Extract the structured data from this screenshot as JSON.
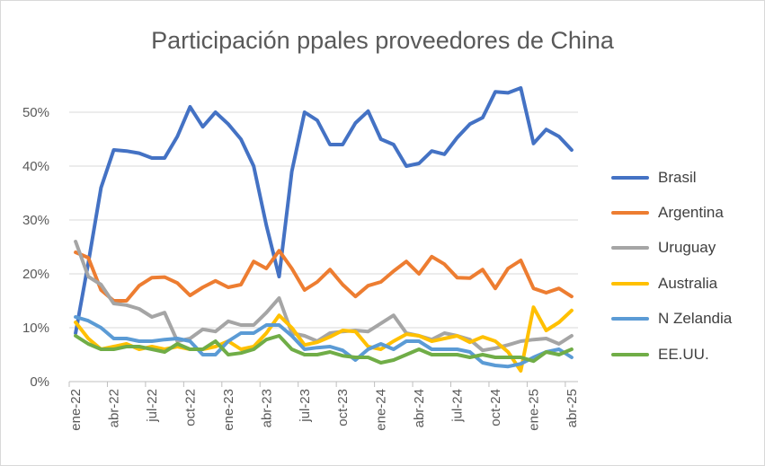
{
  "chart_data": {
    "type": "line",
    "title": "Participación ppales proveedores de China",
    "xlabel": "",
    "ylabel": "",
    "ylim": [
      0,
      55
    ],
    "y_ticks": [
      "0%",
      "10%",
      "20%",
      "30%",
      "40%",
      "50%"
    ],
    "y_tick_values": [
      0,
      10,
      20,
      30,
      40,
      50
    ],
    "x_tick_labels": [
      "ene-22",
      "abr-22",
      "jul-22",
      "oct-22",
      "ene-23",
      "abr-23",
      "jul-23",
      "oct-23",
      "ene-24",
      "abr-24",
      "jul-24",
      "oct-24",
      "ene-25",
      "abr-25"
    ],
    "gridlines": true,
    "legend_position": "right",
    "categories": [
      "ene-22",
      "feb-22",
      "mar-22",
      "abr-22",
      "may-22",
      "jun-22",
      "jul-22",
      "ago-22",
      "sep-22",
      "oct-22",
      "nov-22",
      "dic-22",
      "ene-23",
      "feb-23",
      "mar-23",
      "abr-23",
      "may-23",
      "jun-23",
      "jul-23",
      "ago-23",
      "sep-23",
      "oct-23",
      "nov-23",
      "dic-23",
      "ene-24",
      "feb-24",
      "mar-24",
      "abr-24",
      "may-24",
      "jun-24",
      "jul-24",
      "ago-24",
      "sep-24",
      "oct-24",
      "nov-24",
      "dic-24",
      "ene-25",
      "feb-25",
      "mar-25",
      "abr-25"
    ],
    "series": [
      {
        "name": "Brasil",
        "color": "#4472C4",
        "values": [
          9,
          22,
          36,
          43,
          42.8,
          42.4,
          41.5,
          41.5,
          45.5,
          51,
          47.3,
          50,
          47.8,
          45,
          40,
          29,
          19.5,
          39,
          50,
          48.5,
          44,
          44,
          48,
          50.2,
          45,
          44,
          40,
          40.5,
          42.8,
          42.2,
          45.3,
          47.8,
          49,
          53.8,
          53.6,
          54.5,
          44.2,
          46.8,
          45.5,
          43
        ]
      },
      {
        "name": "Argentina",
        "color": "#ED7D31",
        "values": [
          24,
          23,
          17,
          15,
          15,
          17.8,
          19.3,
          19.4,
          18.3,
          16,
          17.5,
          18.7,
          17.5,
          18,
          22.3,
          21,
          24.3,
          21,
          17,
          18.5,
          20.8,
          18,
          15.8,
          17.8,
          18.5,
          20.5,
          22.3,
          20,
          23.2,
          21.8,
          19.3,
          19.2,
          20.8,
          17.3,
          21,
          22.5,
          17.3,
          16.5,
          17.3,
          15.8
        ]
      },
      {
        "name": "Uruguay",
        "color": "#A5A5A5",
        "values": [
          26,
          19.5,
          18,
          14.5,
          14.2,
          13.5,
          12,
          12.8,
          7.5,
          8,
          9.7,
          9.3,
          11.2,
          10.5,
          10.5,
          12.8,
          15.5,
          9,
          8.5,
          7.5,
          9,
          9.3,
          9.5,
          9.3,
          10.8,
          12.3,
          9,
          8.5,
          7.8,
          9,
          8.5,
          7.8,
          5.8,
          6.2,
          6.8,
          7.5,
          7.8,
          8,
          7,
          8.5
        ]
      },
      {
        "name": "Australia",
        "color": "#FFC000",
        "values": [
          11,
          8,
          6,
          6.5,
          7,
          6,
          6.5,
          6,
          6.5,
          6,
          6,
          6.5,
          7.5,
          6,
          6.5,
          9,
          12.3,
          10,
          6.8,
          7.3,
          8.3,
          9.5,
          9.3,
          6.5,
          6,
          7.5,
          8.8,
          8.5,
          7.5,
          8,
          8.5,
          7.3,
          8.3,
          7.5,
          5.5,
          2,
          13.8,
          9.5,
          11,
          13.2
        ]
      },
      {
        "name": "N Zelandia",
        "color": "#5B9BD5",
        "values": [
          12,
          11.3,
          10,
          8,
          8,
          7.5,
          7.5,
          7.8,
          8,
          7.5,
          5,
          5,
          7.5,
          9,
          9,
          10.5,
          10.5,
          8.5,
          6,
          6.3,
          6.5,
          5.8,
          4,
          6,
          7,
          6,
          7.5,
          7.5,
          6,
          6,
          6,
          5.5,
          3.5,
          3,
          2.8,
          3.3,
          4.5,
          5.5,
          6,
          4.5
        ]
      },
      {
        "name": "EE.UU.",
        "color": "#70AD47",
        "values": [
          8.5,
          7,
          6,
          6,
          6.5,
          6.5,
          6,
          5.5,
          7,
          6,
          6,
          7.5,
          5,
          5.3,
          6,
          7.8,
          8.5,
          6,
          5,
          5,
          5.5,
          4.8,
          4.5,
          4.5,
          3.5,
          4,
          5,
          6,
          5,
          5,
          5,
          4.5,
          5,
          4.5,
          4.5,
          4.5,
          3.8,
          5.5,
          5,
          6
        ]
      }
    ]
  }
}
